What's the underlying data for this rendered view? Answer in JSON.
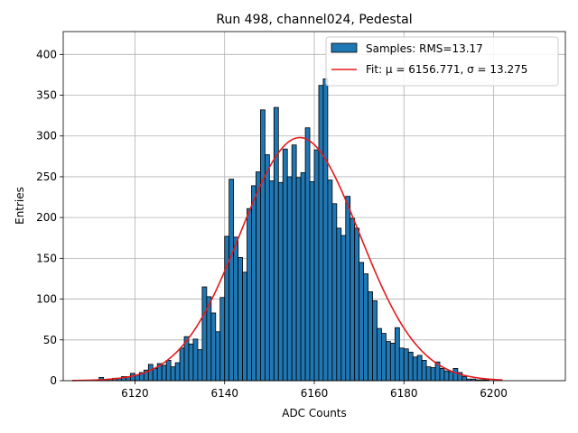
{
  "chart_data": {
    "type": "bar",
    "title": "Run 498, channel024, Pedestal",
    "xlabel": "ADC Counts",
    "ylabel": "Entries",
    "xlim": [
      6104,
      6216
    ],
    "ylim": [
      0,
      428
    ],
    "xticks": [
      6120,
      6140,
      6160,
      6180,
      6200
    ],
    "yticks": [
      0,
      50,
      100,
      150,
      200,
      250,
      300,
      350,
      400
    ],
    "grid": true,
    "legend_position": "top-right",
    "bin_width": 1,
    "histogram": {
      "name": "Samples: RMS=13.17",
      "color": "#1f77b4",
      "edgecolor": "#000000",
      "bin_starts": [
        6106,
        6107,
        6108,
        6109,
        6110,
        6111,
        6112,
        6113,
        6114,
        6115,
        6116,
        6117,
        6118,
        6119,
        6120,
        6121,
        6122,
        6123,
        6124,
        6125,
        6126,
        6127,
        6128,
        6129,
        6130,
        6131,
        6132,
        6133,
        6134,
        6135,
        6136,
        6137,
        6138,
        6139,
        6140,
        6141,
        6142,
        6143,
        6144,
        6145,
        6146,
        6147,
        6148,
        6149,
        6150,
        6151,
        6152,
        6153,
        6154,
        6155,
        6156,
        6157,
        6158,
        6159,
        6160,
        6161,
        6162,
        6163,
        6164,
        6165,
        6166,
        6167,
        6168,
        6169,
        6170,
        6171,
        6172,
        6173,
        6174,
        6175,
        6176,
        6177,
        6178,
        6179,
        6180,
        6181,
        6182,
        6183,
        6184,
        6185,
        6186,
        6187,
        6188,
        6189,
        6190,
        6191,
        6192,
        6193,
        6194,
        6195,
        6196,
        6197,
        6198,
        6199,
        6200,
        6201,
        6202,
        6203,
        6204,
        6205,
        6206,
        6207,
        6208,
        6209,
        6210,
        6211
      ],
      "values": [
        0,
        0,
        0,
        0,
        0,
        1,
        4,
        1,
        2,
        3,
        3,
        5,
        5,
        9,
        7,
        10,
        13,
        20,
        15,
        21,
        19,
        25,
        17,
        22,
        40,
        54,
        45,
        51,
        38,
        115,
        103,
        83,
        60,
        102,
        177,
        247,
        176,
        151,
        133,
        211,
        239,
        256,
        332,
        277,
        245,
        335,
        243,
        284,
        250,
        289,
        249,
        255,
        310,
        244,
        283,
        362,
        370,
        246,
        217,
        187,
        178,
        226,
        199,
        187,
        145,
        131,
        109,
        98,
        64,
        58,
        48,
        46,
        65,
        40,
        39,
        35,
        29,
        31,
        25,
        17,
        16,
        23,
        15,
        12,
        11,
        15,
        10,
        5,
        2,
        2,
        1,
        1,
        1,
        0,
        0,
        0,
        0,
        0,
        0,
        0,
        0,
        0,
        0,
        0,
        0,
        0
      ]
    },
    "fit": {
      "name": "Fit: μ = 6156.771, σ = 13.275",
      "color": "#e41a1c",
      "mu": 6156.771,
      "sigma": 13.275,
      "amplitude": 298,
      "x_range": [
        6106,
        6202
      ]
    }
  }
}
